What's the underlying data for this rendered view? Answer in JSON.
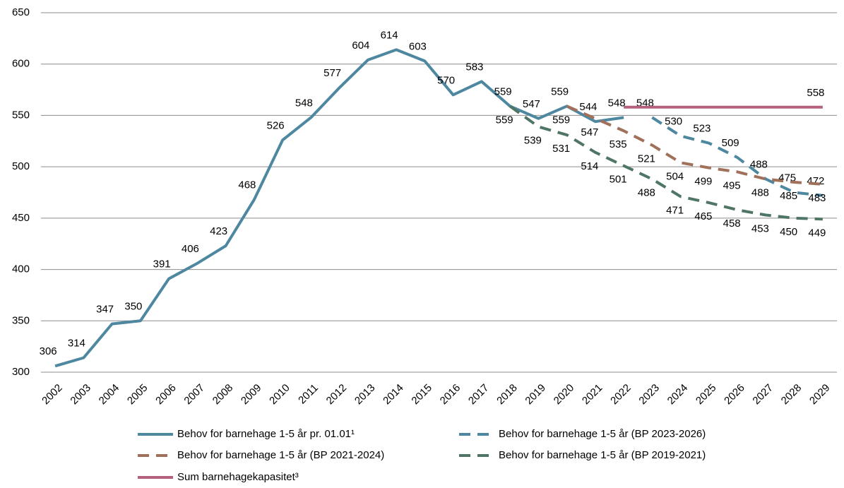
{
  "chart_data": {
    "type": "line",
    "categories": [
      "2002",
      "2003",
      "2004",
      "2005",
      "2006",
      "2007",
      "2008",
      "2009",
      "2010",
      "2011",
      "2012",
      "2013",
      "2014",
      "2015",
      "2016",
      "2017",
      "2018",
      "2019",
      "2020",
      "2021",
      "2022",
      "2023",
      "2024",
      "2025",
      "2026",
      "2027",
      "2028",
      "2029"
    ],
    "ylim": [
      300,
      650
    ],
    "yticks": [
      300,
      350,
      400,
      450,
      500,
      550,
      600,
      650
    ],
    "grid": true,
    "series": [
      {
        "name": "Behov for barnehage 1-5 år pr. 01.01¹",
        "color": "#4e87a0",
        "dash": false,
        "label_pos": "above",
        "values": [
          306,
          314,
          347,
          350,
          391,
          406,
          423,
          468,
          526,
          548,
          577,
          604,
          614,
          603,
          570,
          583,
          559,
          547,
          559,
          544,
          548,
          null,
          null,
          null,
          null,
          null,
          null,
          null
        ]
      },
      {
        "name": "Behov for barnehage 1-5 år (BP 2023-2026)",
        "color": "#4e87a0",
        "dash": true,
        "label_pos": "above",
        "values": [
          null,
          null,
          null,
          null,
          null,
          null,
          null,
          null,
          null,
          null,
          null,
          null,
          null,
          null,
          null,
          null,
          null,
          null,
          null,
          null,
          null,
          548,
          530,
          523,
          509,
          488,
          475,
          472
        ]
      },
      {
        "name": "Behov for barnehage 1-5 år (BP 2021-2024)",
        "color": "#a0705a",
        "dash": true,
        "label_pos": "below",
        "values": [
          null,
          null,
          null,
          null,
          null,
          null,
          null,
          null,
          null,
          null,
          null,
          null,
          null,
          null,
          null,
          null,
          null,
          null,
          559,
          547,
          535,
          521,
          504,
          499,
          495,
          488,
          485,
          483
        ]
      },
      {
        "name": "Behov for barnehage 1-5 år (BP 2019-2021)",
        "color": "#4f7565",
        "dash": true,
        "label_pos": "below",
        "values": [
          null,
          null,
          null,
          null,
          null,
          null,
          null,
          null,
          null,
          null,
          null,
          null,
          null,
          null,
          null,
          null,
          559,
          539,
          531,
          514,
          501,
          488,
          471,
          465,
          458,
          453,
          450,
          449
        ]
      },
      {
        "name": "Sum barnehagekapasitet³",
        "color": "#b5607f",
        "dash": false,
        "label_pos": "above",
        "values": [
          null,
          null,
          null,
          null,
          null,
          null,
          null,
          null,
          null,
          null,
          null,
          null,
          null,
          null,
          null,
          null,
          null,
          null,
          null,
          null,
          558,
          558,
          558,
          558,
          558,
          558,
          558,
          558
        ],
        "value_labels": [
          null,
          null,
          null,
          null,
          null,
          null,
          null,
          null,
          null,
          null,
          null,
          null,
          null,
          null,
          null,
          null,
          null,
          null,
          null,
          null,
          null,
          null,
          null,
          null,
          null,
          null,
          null,
          "558"
        ]
      }
    ]
  }
}
